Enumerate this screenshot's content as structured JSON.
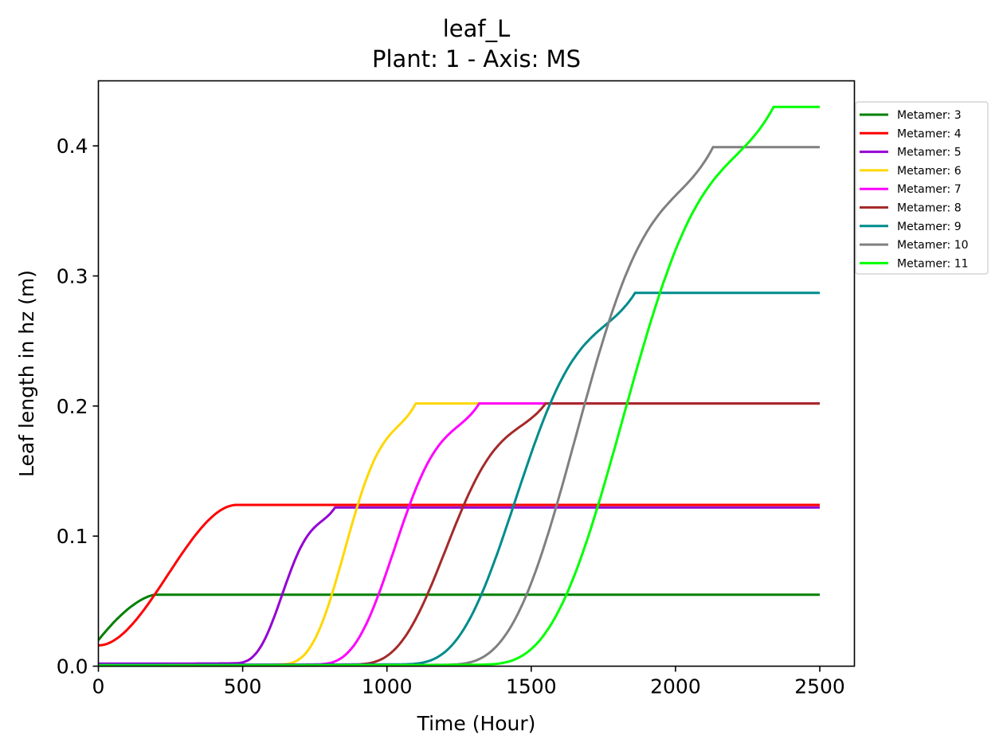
{
  "chart_data": {
    "type": "line",
    "title": "leaf_L",
    "subtitle": "Plant: 1 - Axis: MS",
    "xlabel": "Time (Hour)",
    "ylabel": "Leaf length in hz (m)",
    "xlim": [
      0,
      2620
    ],
    "ylim": [
      0,
      0.45
    ],
    "xticks": [
      0,
      500,
      1000,
      1500,
      2000,
      2500
    ],
    "yticks": [
      0.0,
      0.1,
      0.2,
      0.3,
      0.4
    ],
    "xtick_labels": [
      "0",
      "500",
      "1000",
      "1500",
      "2000",
      "2500"
    ],
    "ytick_labels": [
      "0.0",
      "0.1",
      "0.2",
      "0.3",
      "0.4"
    ],
    "grid": false,
    "legend_position": "outside-top-right",
    "series": [
      {
        "name": "Metamer: 3",
        "color": "#008000",
        "kind": "sig",
        "start": 0,
        "x0": 0,
        "x1": 200,
        "y0": 0.02,
        "y1": 0.055
      },
      {
        "name": "Metamer: 4",
        "color": "#ff0000",
        "kind": "sig",
        "start": 0,
        "x0": 0,
        "x1": 480,
        "y0": 0.016,
        "y1": 0.124
      },
      {
        "name": "Metamer: 5",
        "color": "#9400d3",
        "kind": "ramp",
        "start": 0,
        "x1": 820,
        "y0": 0.002,
        "y1": 0.122
      },
      {
        "name": "Metamer: 6",
        "color": "#ffd700",
        "kind": "ramp",
        "start": 0,
        "x1": 1100,
        "y0": 0.001,
        "y1": 0.202
      },
      {
        "name": "Metamer: 7",
        "color": "#ff00ff",
        "kind": "ramp",
        "start": 0,
        "x1": 1320,
        "y0": 0.001,
        "y1": 0.202
      },
      {
        "name": "Metamer: 8",
        "color": "#a52a2a",
        "kind": "ramp",
        "start": 0,
        "x1": 1550,
        "y0": 0.001,
        "y1": 0.202
      },
      {
        "name": "Metamer: 9",
        "color": "#008b8b",
        "kind": "ramp",
        "start": 0,
        "x1": 1860,
        "y0": 0.001,
        "y1": 0.287
      },
      {
        "name": "Metamer: 10",
        "color": "#808080",
        "kind": "ramp",
        "start": 0,
        "x1": 2130,
        "y0": 0.0005,
        "y1": 0.399
      },
      {
        "name": "Metamer: 11",
        "color": "#00ff00",
        "kind": "ramp",
        "start": 0,
        "x1": 2340,
        "y0": 0.0005,
        "y1": 0.43
      }
    ]
  }
}
